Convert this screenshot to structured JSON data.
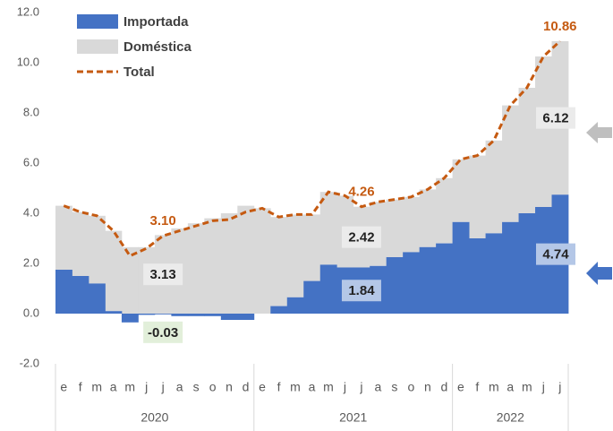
{
  "chart_data": {
    "type": "bar",
    "stacked": true,
    "categories": [
      "e",
      "f",
      "m",
      "a",
      "m",
      "j",
      "j",
      "a",
      "s",
      "o",
      "n",
      "d",
      "e",
      "f",
      "m",
      "a",
      "m",
      "j",
      "j",
      "a",
      "s",
      "o",
      "n",
      "d",
      "e",
      "f",
      "m",
      "a",
      "m",
      "j",
      "j"
    ],
    "groups": [
      {
        "label": "2020",
        "count": 12
      },
      {
        "label": "2021",
        "count": 12
      },
      {
        "label": "2022",
        "count": 7
      }
    ],
    "series": [
      {
        "name": "Importada",
        "type": "bar",
        "color": "#4472c4",
        "values": [
          1.75,
          1.5,
          1.2,
          0.1,
          -0.35,
          -0.05,
          -0.03,
          -0.1,
          -0.1,
          -0.1,
          -0.25,
          -0.25,
          0.0,
          0.3,
          0.65,
          1.3,
          1.95,
          1.84,
          1.84,
          1.9,
          2.25,
          2.45,
          2.65,
          2.8,
          3.65,
          3.0,
          3.2,
          3.65,
          4.0,
          4.25,
          4.74
        ],
        "value_labels": [
          null,
          null,
          null,
          null,
          null,
          null,
          "-0.03",
          null,
          null,
          null,
          null,
          null,
          null,
          null,
          null,
          null,
          null,
          null,
          "1.84",
          null,
          null,
          null,
          null,
          null,
          null,
          null,
          null,
          null,
          null,
          null,
          "4.74"
        ]
      },
      {
        "name": "Doméstica",
        "type": "bar",
        "color": "#d9d9d9",
        "values": [
          2.55,
          2.55,
          2.7,
          3.2,
          2.65,
          2.65,
          3.13,
          3.4,
          3.6,
          3.8,
          4.0,
          4.3,
          4.2,
          3.55,
          3.3,
          2.65,
          2.9,
          2.86,
          2.42,
          2.55,
          2.3,
          2.2,
          2.3,
          2.6,
          2.5,
          3.3,
          3.7,
          4.65,
          5.0,
          6.0,
          6.12
        ],
        "value_labels": [
          null,
          null,
          null,
          null,
          null,
          null,
          "3.13",
          null,
          null,
          null,
          null,
          null,
          null,
          null,
          null,
          null,
          null,
          null,
          "2.42",
          null,
          null,
          null,
          null,
          null,
          null,
          null,
          null,
          null,
          null,
          null,
          "6.12"
        ]
      },
      {
        "name": "Total",
        "type": "line",
        "dashed": true,
        "color": "#c55a11",
        "values": [
          4.3,
          4.05,
          3.9,
          3.3,
          2.3,
          2.6,
          3.1,
          3.3,
          3.5,
          3.7,
          3.75,
          4.05,
          4.2,
          3.85,
          3.95,
          3.95,
          4.85,
          4.7,
          4.26,
          4.45,
          4.55,
          4.65,
          4.95,
          5.4,
          6.15,
          6.3,
          6.9,
          8.3,
          9.0,
          10.25,
          10.86
        ],
        "value_labels": [
          null,
          null,
          null,
          null,
          null,
          null,
          "3.10",
          null,
          null,
          null,
          null,
          null,
          null,
          null,
          null,
          null,
          null,
          null,
          "4.26",
          null,
          null,
          null,
          null,
          null,
          null,
          null,
          null,
          null,
          null,
          null,
          "10.86"
        ]
      }
    ],
    "ylim": [
      -2,
      12
    ],
    "yticks": [
      {
        "value": -2,
        "label": "-2.0"
      },
      {
        "value": 0,
        "label": "0.0"
      },
      {
        "value": 2,
        "label": "2.0"
      },
      {
        "value": 4,
        "label": "4.0"
      },
      {
        "value": 6,
        "label": "6.0"
      },
      {
        "value": 8,
        "label": "8.0"
      },
      {
        "value": 10,
        "label": "10.0"
      },
      {
        "value": 12,
        "label": "12.0"
      }
    ],
    "grid": false,
    "legend": "upper left"
  }
}
